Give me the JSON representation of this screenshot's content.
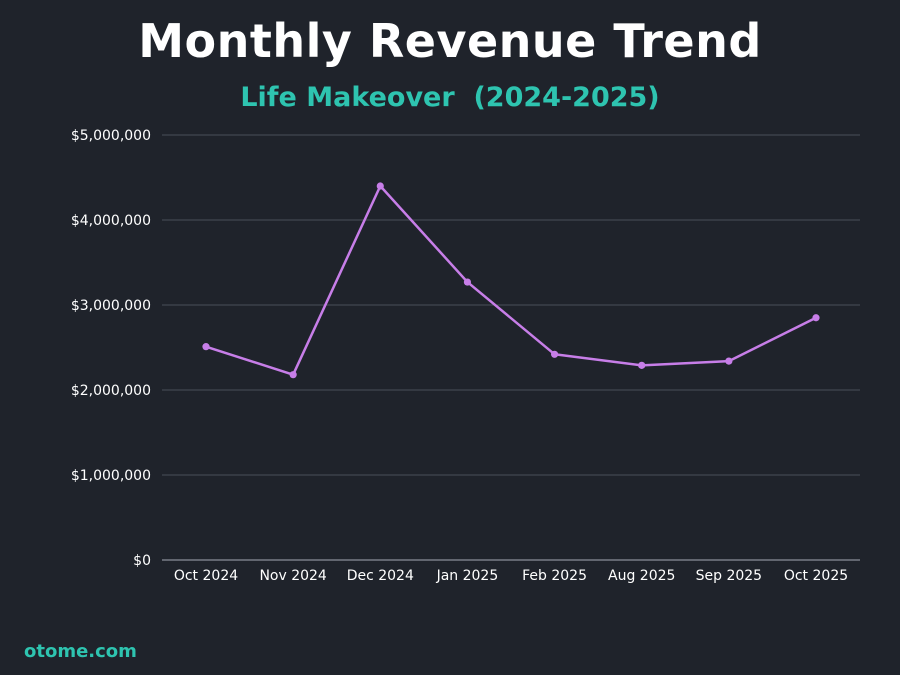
{
  "brand": "otome.com",
  "colors": {
    "background": "#1f232b",
    "title": "#ffffff",
    "accent": "#2ec4b0",
    "line": "#c77ee8",
    "grid": "#4a4f59"
  },
  "chart_data": {
    "type": "line",
    "title": "Monthly Revenue Trend",
    "subtitle": "Life Makeover  (2024-2025)",
    "xlabel": "",
    "ylabel": "",
    "categories": [
      "Oct 2024",
      "Nov 2024",
      "Dec 2024",
      "Jan 2025",
      "Feb 2025",
      "Aug 2025",
      "Sep 2025",
      "Oct 2025"
    ],
    "series": [
      {
        "name": "Revenue",
        "values": [
          2510000,
          2180000,
          4400000,
          3270000,
          2420000,
          2290000,
          2340000,
          2850000
        ]
      }
    ],
    "ylim": [
      0,
      5000000
    ],
    "yticks": [
      0,
      1000000,
      2000000,
      3000000,
      4000000,
      5000000
    ],
    "ytick_labels": [
      "$0",
      "$1,000,000",
      "$2,000,000",
      "$3,000,000",
      "$4,000,000",
      "$5,000,000"
    ],
    "grid": true,
    "legend": "none"
  }
}
